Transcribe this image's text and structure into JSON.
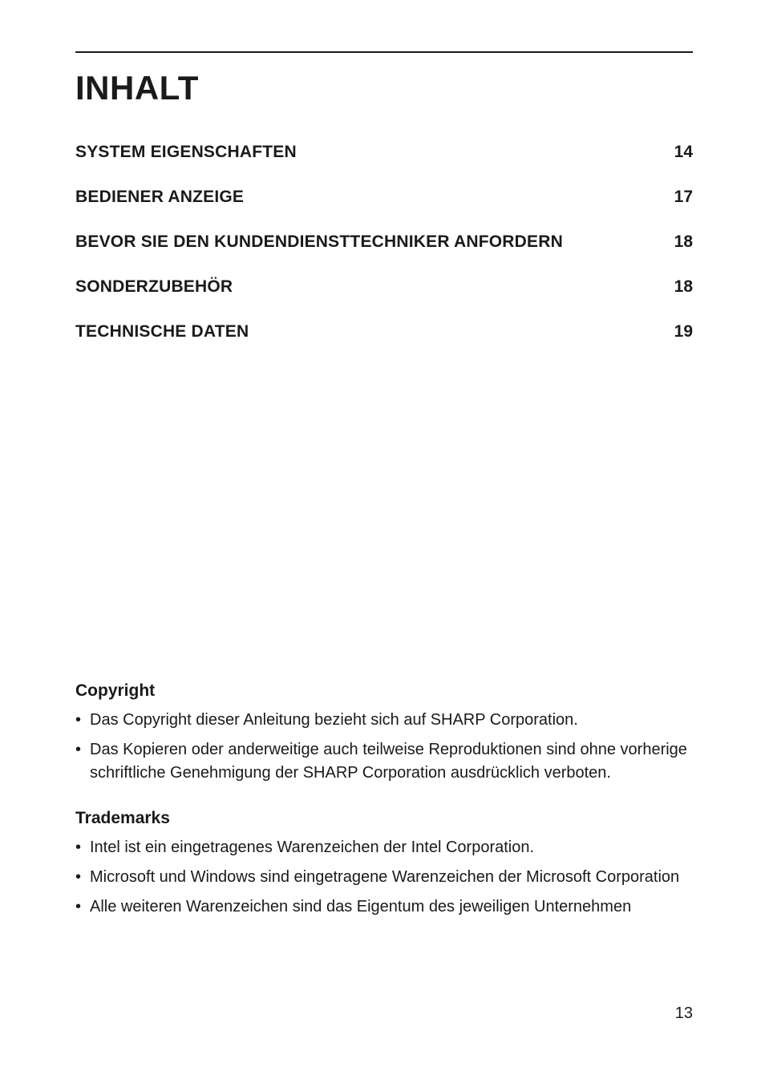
{
  "title": "INHALT",
  "toc": {
    "items": [
      {
        "label": "SYSTEM EIGENSCHAFTEN",
        "page": "14"
      },
      {
        "label": "BEDIENER ANZEIGE",
        "page": "17"
      },
      {
        "label": "BEVOR SIE DEN KUNDENDIENSTTECHNIKER ANFORDERN",
        "page": "18"
      },
      {
        "label": "SONDERZUBEHÖR",
        "page": "18"
      },
      {
        "label": "TECHNISCHE DATEN",
        "page": "19"
      }
    ]
  },
  "sections": {
    "copyright": {
      "heading": "Copyright",
      "bullets": [
        "Das Copyright dieser Anleitung bezieht sich auf SHARP Corporation.",
        "Das Kopieren oder anderweitige auch teilweise Reproduktionen sind ohne vorherige schriftliche Genehmigung der SHARP Corporation ausdrücklich verboten."
      ]
    },
    "trademarks": {
      "heading": "Trademarks",
      "bullets": [
        "Intel ist ein eingetragenes Warenzeichen der Intel Corporation.",
        "Microsoft und Windows sind eingetragene Warenzeichen der Microsoft Corporation",
        "Alle weiteren Warenzeichen sind das Eigentum des jeweiligen Unternehmen"
      ]
    }
  },
  "page_number": "13",
  "style": {
    "background_color": "#ffffff",
    "text_color": "#1a1a1a",
    "rule_color": "#1a1a1a",
    "title_fontsize": 42,
    "heading_fontsize": 21,
    "body_fontsize": 20,
    "font_family": "Myriad Pro / Segoe UI / Arial"
  }
}
